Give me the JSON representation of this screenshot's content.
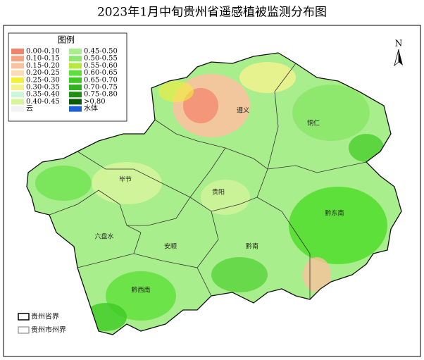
{
  "title": "2023年1月中旬贵州省遥感植被监测分布图",
  "north": "N",
  "legend": {
    "title": "图例",
    "items": [
      {
        "label": "0.00-0.10",
        "color": "#f4826a"
      },
      {
        "label": "0.10-0.15",
        "color": "#f7a486"
      },
      {
        "label": "0.15-0.20",
        "color": "#f9c29e"
      },
      {
        "label": "0.20-0.25",
        "color": "#fbdcb8"
      },
      {
        "label": "0.25-0.30",
        "color": "#f2ee3a"
      },
      {
        "label": "0.30-0.35",
        "color": "#f5f28e"
      },
      {
        "label": "0.35-0.40",
        "color": "#cdf5d8"
      },
      {
        "label": "0.40-0.45",
        "color": "#d8f59c"
      },
      {
        "label": "云",
        "color": "#f2f2f2"
      },
      {
        "label": "0.45-0.50",
        "color": "#a9ee8c"
      },
      {
        "label": "0.50-0.55",
        "color": "#8fe86e"
      },
      {
        "label": "0.55-0.60",
        "color": "#b6e83e"
      },
      {
        "label": "0.60-0.65",
        "color": "#5ee03a"
      },
      {
        "label": "0.65-0.70",
        "color": "#3ccb20"
      },
      {
        "label": "0.70-0.75",
        "color": "#2eb41c"
      },
      {
        "label": "0.75-0.80",
        "color": "#1f8f14"
      },
      {
        "label": ">0.80",
        "color": "#0d5a0a"
      },
      {
        "label": "水体",
        "color": "#1a5fd8"
      }
    ]
  },
  "cities": [
    {
      "name": "遵义"
    },
    {
      "name": "铜仁"
    },
    {
      "name": "毕节"
    },
    {
      "name": "贵阳"
    },
    {
      "name": "六盘水"
    },
    {
      "name": "安顺"
    },
    {
      "name": "黔南"
    },
    {
      "name": "黔东南"
    },
    {
      "name": "黔西南"
    }
  ],
  "boundary_legend": [
    {
      "label": "贵州省界"
    },
    {
      "label": "贵州市州界"
    }
  ]
}
